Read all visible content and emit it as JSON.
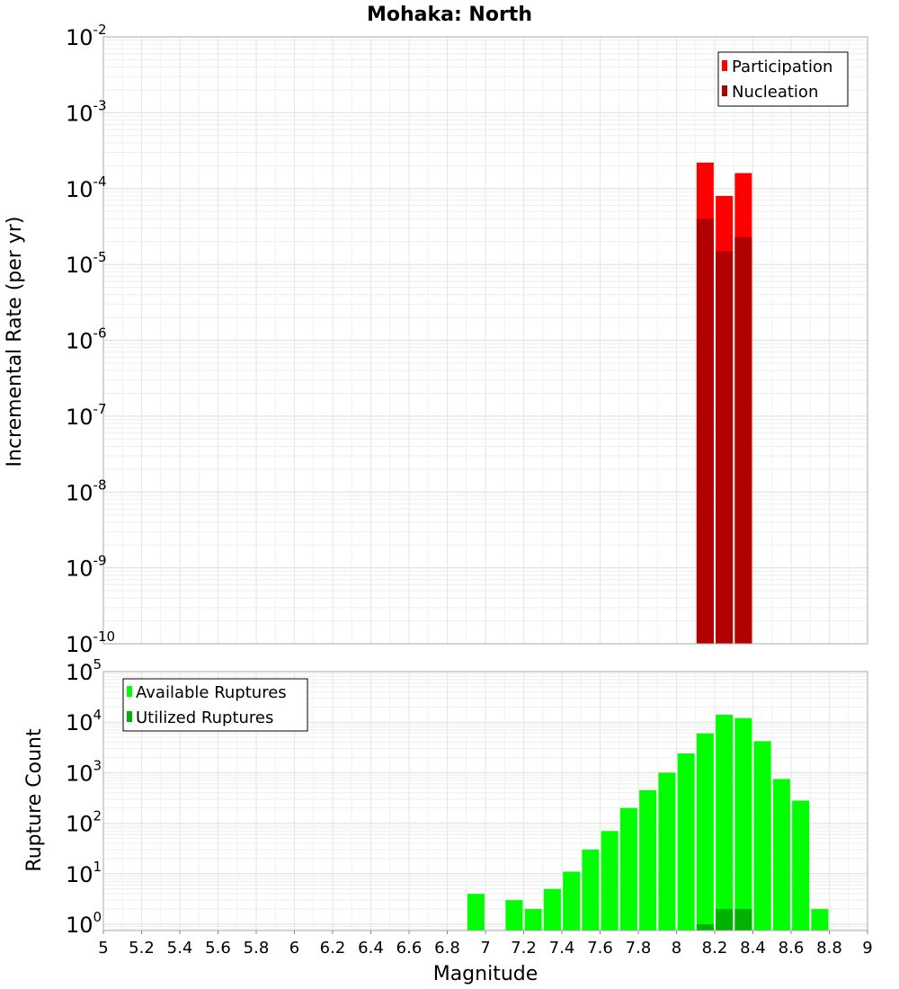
{
  "chart_data": [
    {
      "type": "bar",
      "title": "Mohaka: North",
      "xlabel": "",
      "ylabel": "Incremental Rate (per yr)",
      "yscale": "log",
      "ylim": [
        1e-10,
        0.01
      ],
      "xlim": [
        5,
        9
      ],
      "y_tick_exponents": [
        "-10",
        "-9",
        "-8",
        "-7",
        "-6",
        "-5",
        "-4",
        "-3",
        "-2"
      ],
      "tick_base": "10",
      "legend_position": "top-right",
      "series": [
        {
          "name": "Participation",
          "color": "#ff0000",
          "x": [
            8.15,
            8.25,
            8.35
          ],
          "values": [
            0.00022,
            8e-05,
            0.00016
          ]
        },
        {
          "name": "Nucleation",
          "color": "#b20000",
          "x": [
            8.15,
            8.25,
            8.35
          ],
          "values": [
            4e-05,
            1.5e-05,
            2.3e-05
          ]
        }
      ]
    },
    {
      "type": "bar",
      "title": "",
      "xlabel": "Magnitude",
      "ylabel": "Rupture Count",
      "yscale": "log",
      "ylim": [
        0.75,
        100000
      ],
      "xlim": [
        5,
        9
      ],
      "y_tick_exponents": [
        "0",
        "1",
        "2",
        "3",
        "4",
        "5"
      ],
      "tick_base": "10",
      "x_tick_labels": [
        "5",
        "5.2",
        "5.4",
        "5.6",
        "5.8",
        "6",
        "6.2",
        "6.4",
        "6.6",
        "6.8",
        "7",
        "7.2",
        "7.4",
        "7.6",
        "7.8",
        "8",
        "8.2",
        "8.4",
        "8.6",
        "8.8",
        "9"
      ],
      "legend_position": "top-left",
      "series": [
        {
          "name": "Available Ruptures",
          "color": "#00ff00",
          "x": [
            6.95,
            7.15,
            7.25,
            7.35,
            7.45,
            7.55,
            7.65,
            7.75,
            7.85,
            7.95,
            8.05,
            8.15,
            8.25,
            8.35,
            8.45,
            8.55,
            8.65,
            8.75
          ],
          "values": [
            4,
            3,
            2,
            5,
            11,
            30,
            70,
            200,
            450,
            1000,
            2400,
            6000,
            14000,
            12000,
            4200,
            750,
            280,
            2
          ]
        },
        {
          "name": "Utilized Ruptures",
          "color": "#00b200",
          "x": [
            8.15,
            8.25,
            8.35
          ],
          "values": [
            1,
            2,
            2
          ]
        }
      ]
    }
  ]
}
